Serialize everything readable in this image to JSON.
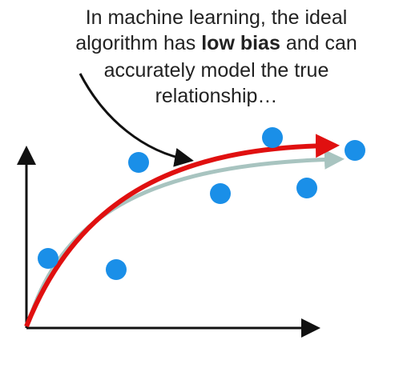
{
  "caption": {
    "lines": [
      [
        "In machine learning, the ideal"
      ],
      [
        "algorithm has ",
        "low bias",
        " and can"
      ],
      [
        "accurately model the true"
      ],
      [
        "relationship…"
      ]
    ]
  }
}
